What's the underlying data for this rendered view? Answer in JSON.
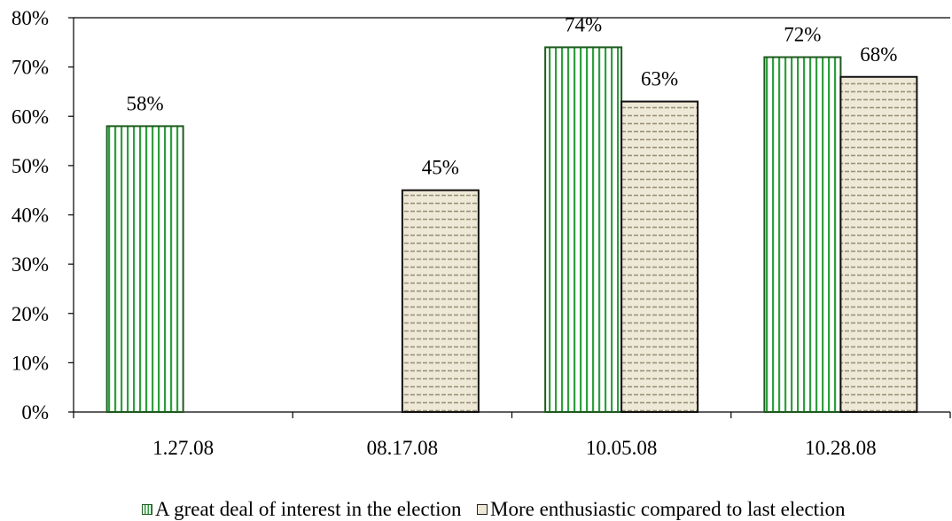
{
  "chart_data": {
    "type": "bar",
    "categories": [
      "1.27.08",
      "08.17.08",
      "10.05.08",
      "10.28.08"
    ],
    "series": [
      {
        "name": "A great deal of interest in the election",
        "values": [
          58,
          null,
          74,
          72
        ],
        "labels": [
          "58%",
          "",
          "74%",
          "72%"
        ],
        "color": "#2e9e3e",
        "pattern": "vertical-stripes"
      },
      {
        "name": "More enthusiastic compared to last election",
        "values": [
          null,
          45,
          63,
          68
        ],
        "labels": [
          "",
          "45%",
          "63%",
          "68%"
        ],
        "color": "#eee8d6",
        "pattern": "dashes"
      }
    ],
    "ylim": [
      0,
      80
    ],
    "yticks": [
      "0%",
      "10%",
      "20%",
      "30%",
      "40%",
      "50%",
      "60%",
      "70%",
      "80%"
    ],
    "ytick_values": [
      0,
      10,
      20,
      30,
      40,
      50,
      60,
      70,
      80
    ],
    "grid": false,
    "legend_position": "bottom",
    "title": "",
    "xlabel": "",
    "ylabel": ""
  }
}
